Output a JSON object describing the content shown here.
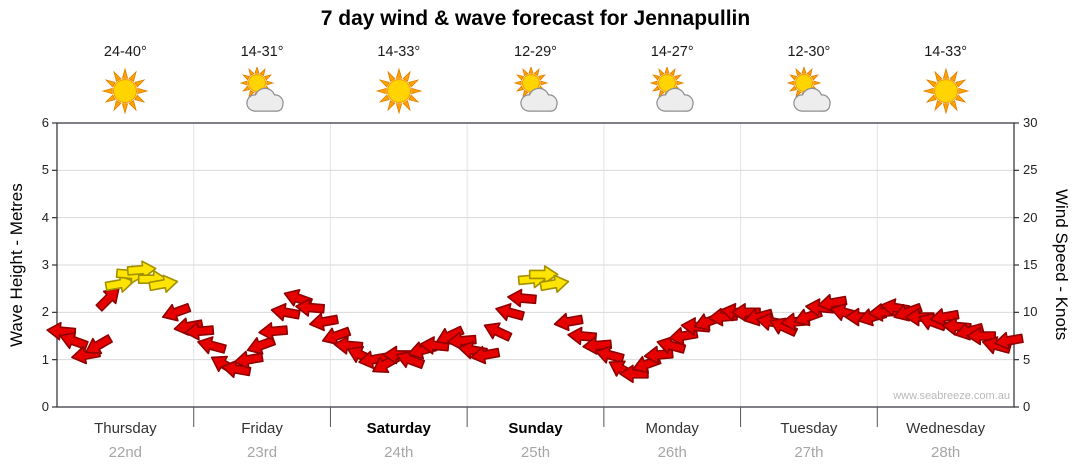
{
  "title": "7 day wind & wave forecast for Jennapullin",
  "watermark": "www.seabreeze.com.au",
  "left_axis": {
    "label": "Wave Height - Metres",
    "min": 0,
    "max": 6,
    "ticks": [
      0,
      1,
      2,
      3,
      4,
      5,
      6
    ]
  },
  "right_axis": {
    "label": "Wind Speed - Knots",
    "min": 0,
    "max": 30,
    "ticks": [
      0,
      5,
      10,
      15,
      20,
      25,
      30
    ]
  },
  "days": [
    {
      "name": "Thursday",
      "date": "22nd",
      "temp": "24-40°",
      "icon": "sunny",
      "weekend": false
    },
    {
      "name": "Friday",
      "date": "23rd",
      "temp": "14-31°",
      "icon": "partly-cloudy",
      "weekend": false
    },
    {
      "name": "Saturday",
      "date": "24th",
      "temp": "14-33°",
      "icon": "sunny",
      "weekend": true
    },
    {
      "name": "Sunday",
      "date": "25th",
      "temp": "12-29°",
      "icon": "partly-cloudy",
      "weekend": true
    },
    {
      "name": "Monday",
      "date": "26th",
      "temp": "14-27°",
      "icon": "partly-cloudy",
      "weekend": false
    },
    {
      "name": "Tuesday",
      "date": "27th",
      "temp": "12-30°",
      "icon": "partly-cloudy",
      "weekend": false
    },
    {
      "name": "Wednesday",
      "date": "28th",
      "temp": "14-33°",
      "icon": "sunny",
      "weekend": false
    }
  ],
  "chart_data": {
    "type": "wind-arrow-forecast",
    "x_categories": [
      "Thursday 22nd",
      "Friday 23rd",
      "Saturday 24th",
      "Sunday 25th",
      "Monday 26th",
      "Tuesday 27th",
      "Wednesday 28th"
    ],
    "wave_height_axis": {
      "label": "Wave Height - Metres",
      "range": [
        0,
        6
      ]
    },
    "wind_speed_axis": {
      "label": "Wind Speed - Knots",
      "range": [
        0,
        30
      ]
    },
    "grid": true,
    "arrow_color_rule": {
      "yellow_at_or_above_knots": 12.5,
      "red_below_knots": 12.5
    },
    "colors": {
      "red_fill": "#e60000",
      "red_stroke": "#8f0000",
      "yellow_fill": "#ffe400",
      "yellow_stroke": "#a39000"
    },
    "points_columns": [
      "day_index",
      "fraction_of_day",
      "wind_knots",
      "direction_deg_cw_from_east"
    ],
    "points": [
      [
        0,
        0.03,
        8,
        185
      ],
      [
        0,
        0.12,
        7,
        200
      ],
      [
        0,
        0.21,
        5.5,
        170
      ],
      [
        0,
        0.3,
        6.5,
        150
      ],
      [
        0,
        0.38,
        11.5,
        315
      ],
      [
        0,
        0.46,
        13,
        350
      ],
      [
        0,
        0.54,
        14,
        5
      ],
      [
        0,
        0.62,
        14.5,
        355
      ],
      [
        0,
        0.7,
        13.5,
        0
      ],
      [
        0,
        0.78,
        13,
        350
      ],
      [
        0,
        0.87,
        10,
        160
      ],
      [
        0,
        0.96,
        8.5,
        170
      ],
      [
        1,
        0.04,
        8,
        175
      ],
      [
        1,
        0.13,
        6.5,
        195
      ],
      [
        1,
        0.22,
        4.5,
        210
      ],
      [
        1,
        0.31,
        4,
        190
      ],
      [
        1,
        0.4,
        5,
        170
      ],
      [
        1,
        0.49,
        6.5,
        160
      ],
      [
        1,
        0.58,
        8,
        175
      ],
      [
        1,
        0.67,
        10,
        190
      ],
      [
        1,
        0.76,
        11.5,
        200
      ],
      [
        1,
        0.85,
        10.5,
        185
      ],
      [
        1,
        0.95,
        9,
        170
      ],
      [
        2,
        0.04,
        7.5,
        160
      ],
      [
        2,
        0.13,
        6.5,
        185
      ],
      [
        2,
        0.22,
        5.5,
        205
      ],
      [
        2,
        0.31,
        5,
        170
      ],
      [
        2,
        0.4,
        4.5,
        150
      ],
      [
        2,
        0.49,
        5.5,
        180
      ],
      [
        2,
        0.58,
        5,
        200
      ],
      [
        2,
        0.67,
        6,
        165
      ],
      [
        2,
        0.76,
        6.5,
        185
      ],
      [
        2,
        0.87,
        7.5,
        155
      ],
      [
        2,
        0.96,
        7,
        175
      ],
      [
        3,
        0.04,
        6,
        190
      ],
      [
        3,
        0.13,
        5.5,
        170
      ],
      [
        3,
        0.22,
        8,
        205
      ],
      [
        3,
        0.31,
        10,
        195
      ],
      [
        3,
        0.4,
        11.5,
        185
      ],
      [
        3,
        0.48,
        13.5,
        355
      ],
      [
        3,
        0.56,
        14,
        0
      ],
      [
        3,
        0.64,
        13,
        350
      ],
      [
        3,
        0.74,
        9,
        170
      ],
      [
        3,
        0.84,
        7.5,
        185
      ],
      [
        3,
        0.95,
        6.5,
        175
      ],
      [
        4,
        0.04,
        5.5,
        195
      ],
      [
        4,
        0.13,
        4,
        210
      ],
      [
        4,
        0.22,
        3.5,
        180
      ],
      [
        4,
        0.31,
        4.5,
        160
      ],
      [
        4,
        0.4,
        5.5,
        175
      ],
      [
        4,
        0.49,
        6.5,
        195
      ],
      [
        4,
        0.58,
        7.5,
        170
      ],
      [
        4,
        0.67,
        8.5,
        185
      ],
      [
        4,
        0.76,
        9,
        160
      ],
      [
        4,
        0.87,
        9.5,
        175
      ],
      [
        4,
        0.96,
        10,
        190
      ],
      [
        5,
        0.04,
        10,
        180
      ],
      [
        5,
        0.13,
        9.5,
        165
      ],
      [
        5,
        0.22,
        9,
        190
      ],
      [
        5,
        0.31,
        8.5,
        205
      ],
      [
        5,
        0.4,
        9,
        175
      ],
      [
        5,
        0.49,
        9.5,
        160
      ],
      [
        5,
        0.58,
        10.5,
        185
      ],
      [
        5,
        0.67,
        11,
        170
      ],
      [
        5,
        0.76,
        10,
        195
      ],
      [
        5,
        0.87,
        9.5,
        180
      ],
      [
        5,
        0.96,
        9.5,
        165
      ],
      [
        6,
        0.04,
        10,
        175
      ],
      [
        6,
        0.13,
        10.5,
        190
      ],
      [
        6,
        0.22,
        10,
        160
      ],
      [
        6,
        0.31,
        9.5,
        180
      ],
      [
        6,
        0.4,
        9,
        200
      ],
      [
        6,
        0.49,
        9.5,
        170
      ],
      [
        6,
        0.58,
        8.5,
        185
      ],
      [
        6,
        0.67,
        8,
        165
      ],
      [
        6,
        0.76,
        7.5,
        180
      ],
      [
        6,
        0.87,
        6.5,
        195
      ],
      [
        6,
        0.96,
        7,
        170
      ]
    ]
  }
}
